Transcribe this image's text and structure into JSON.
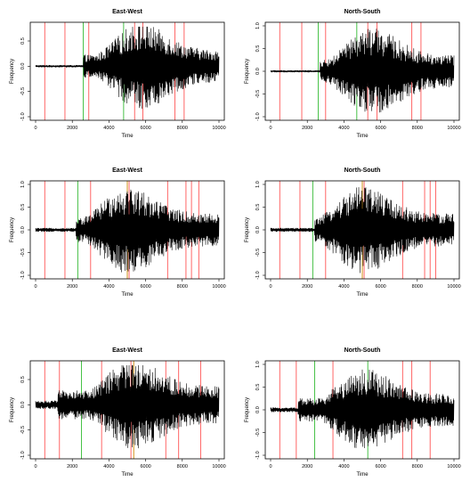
{
  "figure": {
    "colors": {
      "signal": "#000000",
      "red_marker": "#ff5555",
      "green_marker": "#33bb33",
      "background": "#ffffff"
    }
  },
  "chart_data": [
    {
      "type": "line",
      "title": "East-West",
      "xlabel": "Time",
      "ylabel": "Frequency",
      "xlim": [
        0,
        10000
      ],
      "ylim": [
        -1.0,
        0.8
      ],
      "xticks": [
        0,
        2000,
        4000,
        6000,
        8000,
        10000
      ],
      "yticks": [
        -1.0,
        -0.5,
        0.0,
        0.5
      ],
      "grid": false,
      "series": [
        {
          "values": "waveform",
          "onset": 2600,
          "peak_time": 5700,
          "noise_level": 0.02,
          "peak_amp": 0.85
        }
      ],
      "markers": {
        "red": [
          500,
          1600,
          2900,
          5400,
          5850,
          7600,
          8100
        ],
        "green": [
          2600,
          4800
        ]
      }
    },
    {
      "type": "line",
      "title": "North-South",
      "xlabel": "Time",
      "ylabel": "Frequency",
      "xlim": [
        0,
        10000
      ],
      "ylim": [
        -1.0,
        1.0
      ],
      "xticks": [
        0,
        2000,
        4000,
        6000,
        8000,
        10000
      ],
      "yticks": [
        -1.0,
        -0.5,
        0.0,
        0.5,
        1.0
      ],
      "grid": false,
      "series": [
        {
          "values": "waveform",
          "onset": 2700,
          "peak_time": 5500,
          "noise_level": 0.02,
          "peak_amp": 0.95
        }
      ],
      "markers": {
        "red": [
          500,
          1700,
          3000,
          5300,
          5800,
          7700,
          8200
        ],
        "green": [
          2600,
          4700
        ]
      }
    },
    {
      "type": "line",
      "title": "East-West",
      "xlabel": "Time",
      "ylabel": "Frequency",
      "xlim": [
        0,
        10000
      ],
      "ylim": [
        -1.0,
        1.0
      ],
      "xticks": [
        0,
        2000,
        4000,
        6000,
        8000,
        10000
      ],
      "yticks": [
        -1.0,
        -0.5,
        0.0,
        0.5,
        1.0
      ],
      "grid": false,
      "series": [
        {
          "values": "waveform",
          "onset": 2200,
          "peak_time": 5000,
          "noise_level": 0.04,
          "peak_amp": 0.95
        }
      ],
      "markers": {
        "red": [
          500,
          1600,
          3000,
          5100,
          7200,
          8200,
          8500,
          8900
        ],
        "green": [
          2300
        ],
        "orange": [
          5000
        ]
      }
    },
    {
      "type": "line",
      "title": "North-South",
      "xlabel": "Time",
      "ylabel": "Frequency",
      "xlim": [
        0,
        10000
      ],
      "ylim": [
        -1.0,
        1.0
      ],
      "xticks": [
        0,
        2000,
        4000,
        6000,
        8000,
        10000
      ],
      "yticks": [
        -1.0,
        -0.5,
        0.0,
        0.5,
        1.0
      ],
      "grid": false,
      "series": [
        {
          "values": "waveform",
          "onset": 2400,
          "peak_time": 5000,
          "noise_level": 0.04,
          "peak_amp": 0.95
        }
      ],
      "markers": {
        "red": [
          500,
          1600,
          3000,
          5100,
          7200,
          8400,
          8700,
          9000
        ],
        "green": [
          2300
        ],
        "orange": [
          5000
        ]
      }
    },
    {
      "type": "line",
      "title": "East-West",
      "xlabel": "Time",
      "ylabel": "Frequency",
      "xlim": [
        0,
        10000
      ],
      "ylim": [
        -1.0,
        0.8
      ],
      "xticks": [
        0,
        2000,
        4000,
        6000,
        8000,
        10000
      ],
      "yticks": [
        -1.0,
        -0.5,
        0.0,
        0.5
      ],
      "grid": false,
      "series": [
        {
          "values": "waveform",
          "onset": 1200,
          "peak_time": 5300,
          "noise_level": 0.08,
          "peak_amp": 0.9
        }
      ],
      "markers": {
        "red": [
          500,
          1300,
          3600,
          5200,
          7100,
          7800,
          9000
        ],
        "green": [
          2500
        ],
        "orange": [
          5350
        ]
      }
    },
    {
      "type": "line",
      "title": "North-South",
      "xlabel": "Time",
      "ylabel": "Frequency",
      "xlim": [
        0,
        10000
      ],
      "ylim": [
        -1.0,
        1.0
      ],
      "xticks": [
        0,
        2000,
        4000,
        6000,
        8000,
        10000
      ],
      "yticks": [
        -1.0,
        -0.5,
        0.0,
        0.5,
        1.0
      ],
      "grid": false,
      "series": [
        {
          "values": "waveform",
          "onset": 1500,
          "peak_time": 5100,
          "noise_level": 0.05,
          "peak_amp": 0.9
        }
      ],
      "markers": {
        "red": [
          500,
          1400,
          3400,
          7200,
          7700,
          8700
        ],
        "green": [
          2400,
          5300
        ]
      }
    }
  ]
}
